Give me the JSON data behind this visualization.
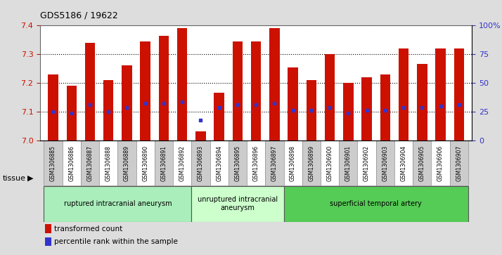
{
  "title": "GDS5186 / 19622",
  "samples": [
    "GSM1306885",
    "GSM1306886",
    "GSM1306887",
    "GSM1306888",
    "GSM1306889",
    "GSM1306890",
    "GSM1306891",
    "GSM1306892",
    "GSM1306893",
    "GSM1306894",
    "GSM1306895",
    "GSM1306896",
    "GSM1306897",
    "GSM1306898",
    "GSM1306899",
    "GSM1306900",
    "GSM1306901",
    "GSM1306902",
    "GSM1306903",
    "GSM1306904",
    "GSM1306905",
    "GSM1306906",
    "GSM1306907"
  ],
  "bar_heights": [
    7.23,
    7.19,
    7.34,
    7.21,
    7.26,
    7.345,
    7.365,
    7.39,
    7.03,
    7.165,
    7.345,
    7.345,
    7.39,
    7.255,
    7.21,
    7.3,
    7.2,
    7.22,
    7.23,
    7.32,
    7.265,
    7.32,
    7.32
  ],
  "blue_dot_y": [
    7.1,
    7.095,
    7.125,
    7.1,
    7.115,
    7.13,
    7.13,
    7.135,
    7.07,
    7.115,
    7.125,
    7.125,
    7.13,
    7.105,
    7.105,
    7.115,
    7.095,
    7.105,
    7.105,
    7.115,
    7.115,
    7.12,
    7.125
  ],
  "ylim": [
    7.0,
    7.4
  ],
  "yticks": [
    7.0,
    7.1,
    7.2,
    7.3,
    7.4
  ],
  "right_ytick_labels": [
    "0",
    "25",
    "50",
    "75",
    "100%"
  ],
  "right_ytick_vals": [
    0,
    25,
    50,
    75,
    100
  ],
  "bar_color": "#cc1100",
  "dot_color": "#3333cc",
  "fig_bg": "#dddddd",
  "plot_bg": "#ffffff",
  "xtick_bg_even": "#cccccc",
  "xtick_bg_odd": "#ffffff",
  "tissue_groups": [
    {
      "label": "ruptured intracranial aneurysm",
      "start": 0,
      "end": 8,
      "color": "#aaeebb"
    },
    {
      "label": "unruptured intracranial\naneurysm",
      "start": 8,
      "end": 13,
      "color": "#ccffcc"
    },
    {
      "label": "superficial temporal artery",
      "start": 13,
      "end": 23,
      "color": "#55cc55"
    }
  ],
  "tissue_label": "tissue",
  "legend_items": [
    {
      "label": "transformed count",
      "color": "#cc1100"
    },
    {
      "label": "percentile rank within the sample",
      "color": "#3333cc"
    }
  ]
}
